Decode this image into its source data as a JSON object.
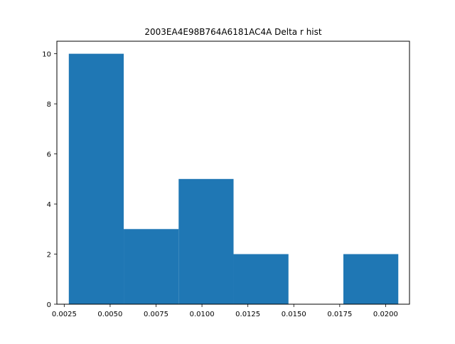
{
  "chart_data": {
    "type": "bar",
    "title": "2003EA4E98B764A6181AC4A Delta r hist",
    "xlabel": "",
    "ylabel": "",
    "bins": [
      {
        "x0": 0.00275,
        "x1": 0.00574,
        "count": 10
      },
      {
        "x0": 0.00574,
        "x1": 0.00873,
        "count": 3
      },
      {
        "x0": 0.00873,
        "x1": 0.01172,
        "count": 5
      },
      {
        "x0": 0.01172,
        "x1": 0.01471,
        "count": 2
      },
      {
        "x0": 0.01471,
        "x1": 0.0177,
        "count": 0
      },
      {
        "x0": 0.0177,
        "x1": 0.02069,
        "count": 2
      }
    ],
    "xlim": [
      0.0021,
      0.0213
    ],
    "ylim": [
      0,
      10.5
    ],
    "xticks": [
      0.0025,
      0.005,
      0.0075,
      0.01,
      0.0125,
      0.015,
      0.0175,
      0.02
    ],
    "xtick_labels": [
      "0.0025",
      "0.0050",
      "0.0075",
      "0.0100",
      "0.0125",
      "0.0150",
      "0.0175",
      "0.0200"
    ],
    "yticks": [
      0,
      2,
      4,
      6,
      8,
      10
    ],
    "ytick_labels": [
      "0",
      "2",
      "4",
      "6",
      "8",
      "10"
    ],
    "grid": false,
    "colors": {
      "bar": "#1f77b4",
      "axes": "#000000",
      "background": "#ffffff"
    }
  }
}
